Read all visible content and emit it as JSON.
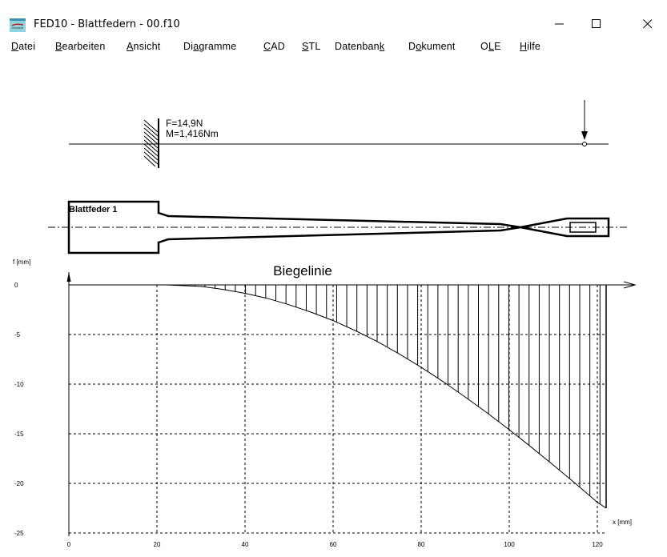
{
  "window": {
    "title": "FED10 - Blattfedern  -  00.f10",
    "controls": {
      "minimize": "—",
      "maximize": "☐",
      "close": "✕"
    }
  },
  "menu": [
    {
      "label": "Datei",
      "mnemonic_index": 0
    },
    {
      "label": "Bearbeiten",
      "mnemonic_index": 0
    },
    {
      "label": "Ansicht",
      "mnemonic_index": 0
    },
    {
      "label": "Diagramme",
      "mnemonic_index": 2
    },
    {
      "label": "CAD",
      "mnemonic_index": 0
    },
    {
      "label": "STL",
      "mnemonic_index": 0
    },
    {
      "label": "Datenbank",
      "mnemonic_index": 8
    },
    {
      "label": "Dokument",
      "mnemonic_index": 1
    },
    {
      "label": "OLE",
      "mnemonic_index": 1
    },
    {
      "label": "Hilfe",
      "mnemonic_index": 0
    }
  ],
  "load_diagram": {
    "force_label": "F=14,9N",
    "moment_label": "M=1,416Nm"
  },
  "spring": {
    "label": "Blattfeder 1"
  },
  "chart_data": {
    "type": "area",
    "title": "Biegelinie",
    "ylabel": "f [mm]",
    "xlabel": "x [mm]",
    "xlim": [
      0,
      122
    ],
    "ylim": [
      -25,
      0
    ],
    "x_ticks": [
      0,
      20,
      40,
      60,
      80,
      100,
      120
    ],
    "y_ticks": [
      0,
      -5,
      -10,
      -15,
      -20,
      -25
    ],
    "grid": true,
    "hatch": "vertical",
    "series": [
      {
        "x": [
          22,
          30,
          35,
          40,
          45,
          50,
          55,
          60,
          65,
          70,
          75,
          80,
          85,
          90,
          95,
          100,
          105,
          110,
          115,
          120,
          122
        ],
        "values": [
          0,
          -0.15,
          -0.45,
          -0.85,
          -1.35,
          -2.0,
          -2.75,
          -3.6,
          -4.6,
          -5.7,
          -6.95,
          -8.3,
          -9.75,
          -11.3,
          -12.9,
          -14.6,
          -16.35,
          -18.15,
          -20.0,
          -21.9,
          -22.5
        ]
      }
    ]
  }
}
